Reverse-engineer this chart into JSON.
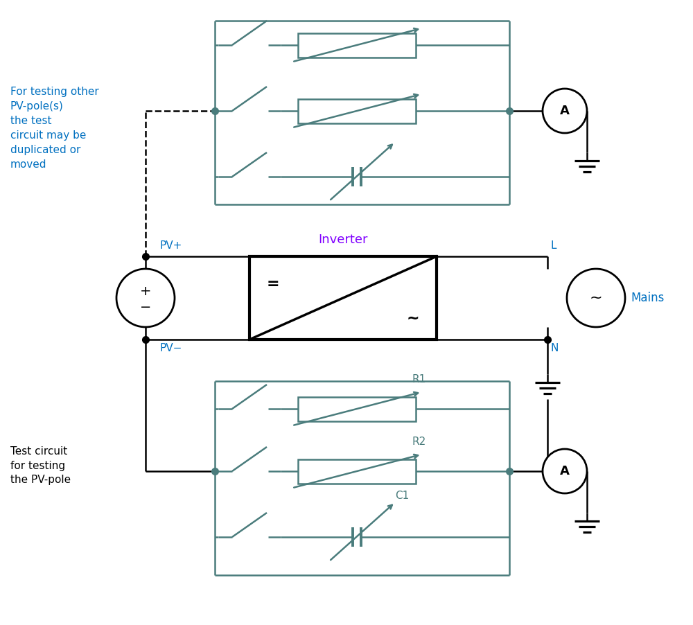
{
  "bg_color": "#ffffff",
  "line_color": "#4a4a4a",
  "teal_color": "#4a7c7c",
  "purple_color": "#8000ff",
  "blue_color": "#0070c0",
  "black": "#000000",
  "figsize": [
    10.0,
    9.02
  ],
  "dpi": 100,
  "annotations": {
    "for_testing_text": "For testing other\nPV-pole(s)\nthe test\ncircuit may be\nduplicated or\nmoved",
    "test_circuit_text": "Test circuit\nfor testing\nthe PV-pole",
    "inverter_label": "Inverter",
    "pv_plus": "PV+",
    "pv_minus": "PV−",
    "L_label": "L",
    "N_label": "N",
    "mains_label": "Mains",
    "R1_label": "R1",
    "R2_label": "R2",
    "C1_label": "C1"
  }
}
